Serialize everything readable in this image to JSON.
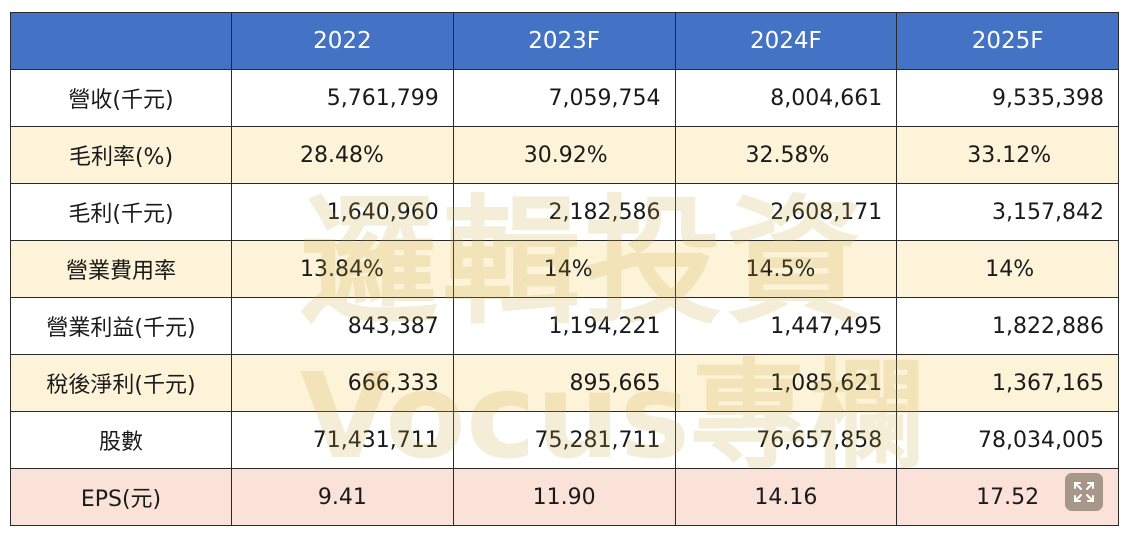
{
  "table": {
    "headers": [
      "",
      "2022",
      "2023F",
      "2024F",
      "2025F"
    ],
    "rows": [
      {
        "label": "營收(千元)",
        "values": [
          "5,761,799",
          "7,059,754",
          "8,004,661",
          "9,535,398"
        ]
      },
      {
        "label": "毛利率(%)",
        "values": [
          "28.48%",
          "30.92%",
          "32.58%",
          "33.12%"
        ]
      },
      {
        "label": "毛利(千元)",
        "values": [
          "1,640,960",
          "2,182,586",
          "2,608,171",
          "3,157,842"
        ]
      },
      {
        "label": "營業費用率",
        "values": [
          "13.84%",
          "14%",
          "14.5%",
          "14%"
        ]
      },
      {
        "label": "營業利益(千元)",
        "values": [
          "843,387",
          "1,194,221",
          "1,447,495",
          "1,822,886"
        ]
      },
      {
        "label": "稅後淨利(千元)",
        "values": [
          "666,333",
          "895,665",
          "1,085,621",
          "1,367,165"
        ]
      },
      {
        "label": "股數",
        "values": [
          "71,431,711",
          "75,281,711",
          "76,657,858",
          "78,034,005"
        ]
      },
      {
        "label": "EPS(元)",
        "values": [
          "9.41",
          "11.90",
          "14.16",
          "17.52"
        ]
      }
    ]
  },
  "watermark": {
    "line1": "邏輯投資",
    "line2": "Vocus專欄"
  },
  "colors": {
    "header_bg": "#4472c4",
    "beige_row": "#fceec8",
    "pink_row": "#fadDd2"
  },
  "icons": {
    "expand": "expand-icon"
  }
}
